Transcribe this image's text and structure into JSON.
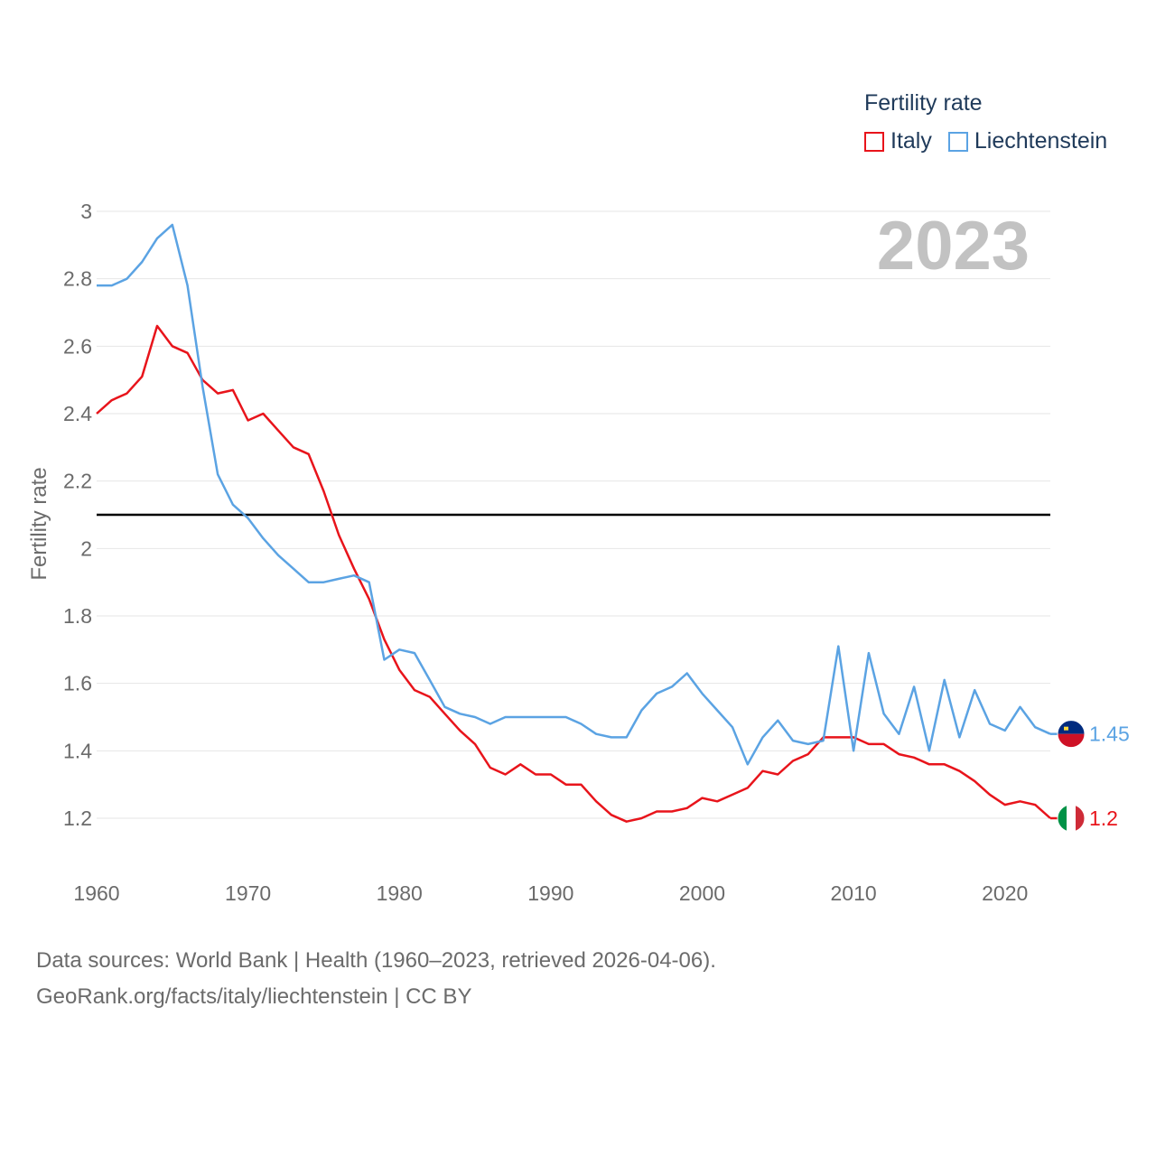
{
  "legend": {
    "title": "Fertility rate",
    "items": [
      {
        "label": "Italy",
        "color": "#e8141b"
      },
      {
        "label": "Liechtenstein",
        "color": "#5ba3e3"
      }
    ]
  },
  "year_label": "2023",
  "footer": {
    "line1": "Data sources: World Bank | Health (1960–2023, retrieved 2026-04-06).",
    "line2": "GeoRank.org/facts/italy/liechtenstein | CC BY"
  },
  "chart_data": {
    "type": "line",
    "title": "",
    "xlabel": "",
    "ylabel": "Fertility rate",
    "xlim": [
      1960,
      2023
    ],
    "ylim": [
      1.1,
      3.0
    ],
    "yticks": [
      1.2,
      1.4,
      1.6,
      1.8,
      2.0,
      2.2,
      2.4,
      2.6,
      2.8,
      3.0
    ],
    "ytick_labels": [
      "1.2",
      "1.4",
      "1.6",
      "1.8",
      "2",
      "2.2",
      "2.4",
      "2.6",
      "2.8",
      "3"
    ],
    "xticks": [
      1960,
      1970,
      1980,
      1990,
      2000,
      2010,
      2020
    ],
    "xtick_labels": [
      "1960",
      "1970",
      "1980",
      "1990",
      "2000",
      "2010",
      "2020"
    ],
    "reference_line": 2.1,
    "x": [
      1960,
      1961,
      1962,
      1963,
      1964,
      1965,
      1966,
      1967,
      1968,
      1969,
      1970,
      1971,
      1972,
      1973,
      1974,
      1975,
      1976,
      1977,
      1978,
      1979,
      1980,
      1981,
      1982,
      1983,
      1984,
      1985,
      1986,
      1987,
      1988,
      1989,
      1990,
      1991,
      1992,
      1993,
      1994,
      1995,
      1996,
      1997,
      1998,
      1999,
      2000,
      2001,
      2002,
      2003,
      2004,
      2005,
      2006,
      2007,
      2008,
      2009,
      2010,
      2011,
      2012,
      2013,
      2014,
      2015,
      2016,
      2017,
      2018,
      2019,
      2020,
      2021,
      2022,
      2023
    ],
    "series": [
      {
        "name": "Italy",
        "color": "#e8141b",
        "end_label": "1.2",
        "values": [
          2.4,
          2.44,
          2.46,
          2.51,
          2.66,
          2.6,
          2.58,
          2.5,
          2.46,
          2.47,
          2.38,
          2.4,
          2.35,
          2.3,
          2.28,
          2.17,
          2.04,
          1.94,
          1.85,
          1.73,
          1.64,
          1.58,
          1.56,
          1.51,
          1.46,
          1.42,
          1.35,
          1.33,
          1.36,
          1.33,
          1.33,
          1.3,
          1.3,
          1.25,
          1.21,
          1.19,
          1.2,
          1.22,
          1.22,
          1.23,
          1.26,
          1.25,
          1.27,
          1.29,
          1.34,
          1.33,
          1.37,
          1.39,
          1.44,
          1.44,
          1.44,
          1.42,
          1.42,
          1.39,
          1.38,
          1.36,
          1.36,
          1.34,
          1.31,
          1.27,
          1.24,
          1.25,
          1.24,
          1.2
        ]
      },
      {
        "name": "Liechtenstein",
        "color": "#5ba3e3",
        "end_label": "1.45",
        "values": [
          2.78,
          2.78,
          2.8,
          2.85,
          2.92,
          2.96,
          2.78,
          2.48,
          2.22,
          2.13,
          2.09,
          2.03,
          1.98,
          1.94,
          1.9,
          1.9,
          1.91,
          1.92,
          1.9,
          1.67,
          1.7,
          1.69,
          1.61,
          1.53,
          1.51,
          1.5,
          1.48,
          1.5,
          1.5,
          1.5,
          1.5,
          1.5,
          1.48,
          1.45,
          1.44,
          1.44,
          1.52,
          1.57,
          1.59,
          1.63,
          1.57,
          1.52,
          1.47,
          1.36,
          1.44,
          1.49,
          1.43,
          1.42,
          1.43,
          1.71,
          1.4,
          1.69,
          1.51,
          1.45,
          1.59,
          1.4,
          1.61,
          1.44,
          1.58,
          1.48,
          1.46,
          1.53,
          1.47,
          1.45
        ]
      }
    ]
  }
}
